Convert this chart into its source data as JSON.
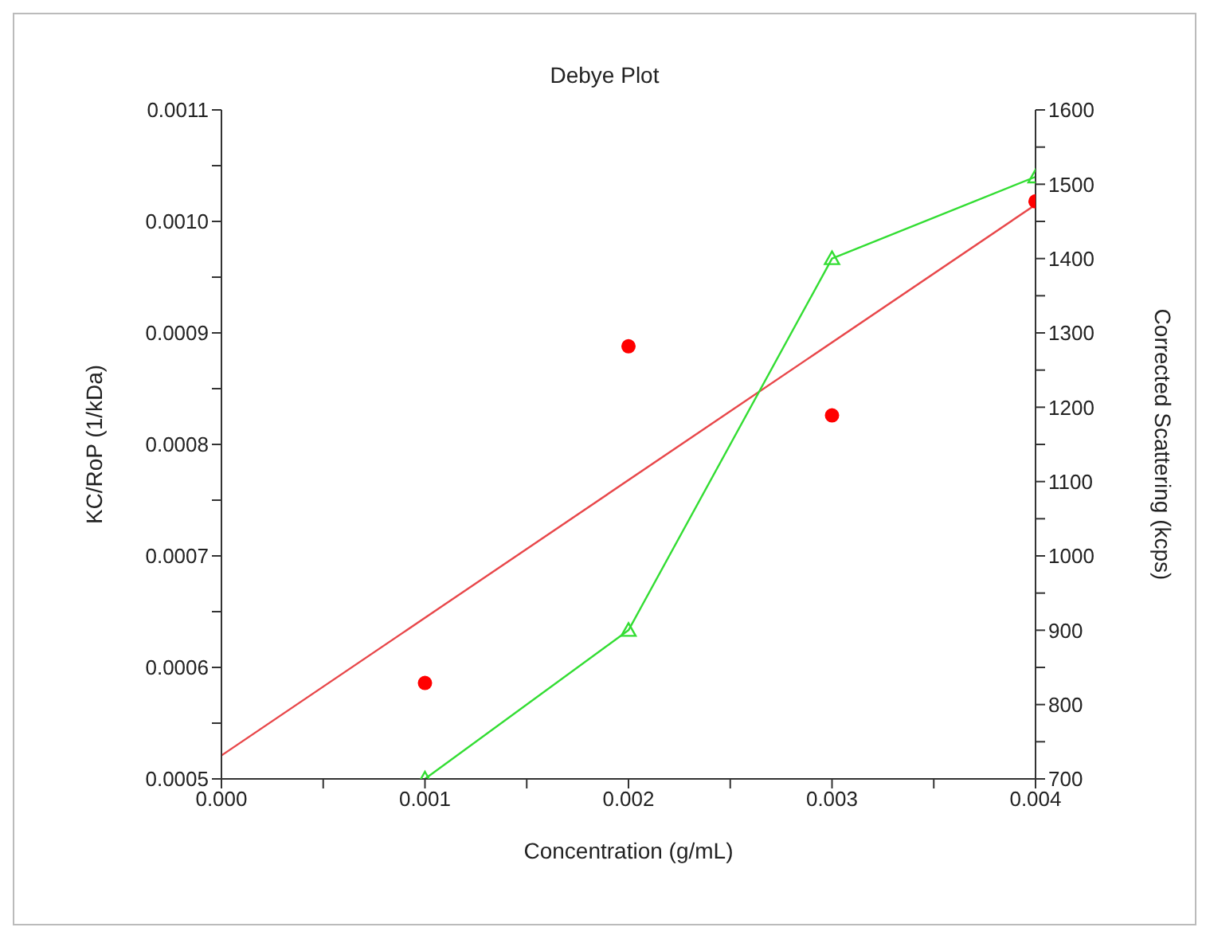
{
  "chart_data": {
    "type": "scatter",
    "title": "Debye Plot",
    "xlabel": "Concentration (g/mL)",
    "ylabel": "KC/RoP (1/kDa)",
    "y2label": "Corrected Scattering (kcps)",
    "xlim": [
      0,
      0.004
    ],
    "xticks": [
      {
        "value": 0,
        "label": "0.000"
      },
      {
        "value": 0.0005,
        "label": null
      },
      0.001,
      {
        "value": 0.0015,
        "label": null
      },
      0.002,
      {
        "value": 0.0025,
        "label": null
      },
      0.003,
      {
        "value": 0.0035,
        "label": null
      },
      0.004
    ],
    "ylim": [
      0.0005,
      0.0011
    ],
    "yticks": [
      0.0005,
      {
        "value": 0.00055,
        "label": null
      },
      0.0006,
      {
        "value": 0.00065,
        "label": null
      },
      0.0007,
      {
        "value": 0.00075,
        "label": null
      },
      0.0008,
      {
        "value": 0.00085,
        "label": null
      },
      0.0009,
      {
        "value": 0.00095,
        "label": null
      },
      {
        "value": 0.001,
        "label": "0.0010"
      },
      {
        "value": 0.00105,
        "label": null
      },
      0.0011
    ],
    "y2lim": [
      700,
      1600
    ],
    "y2ticks": [
      700,
      {
        "value": 750,
        "label": null
      },
      800,
      {
        "value": 850,
        "label": null
      },
      900,
      {
        "value": 950,
        "label": null
      },
      1000,
      {
        "value": 1050,
        "label": null
      },
      1100,
      {
        "value": 1150,
        "label": null
      },
      1200,
      {
        "value": 1250,
        "label": null
      },
      1300,
      {
        "value": 1350,
        "label": null
      },
      1400,
      {
        "value": 1450,
        "label": null
      },
      1500,
      {
        "value": 1550,
        "label": null
      },
      1600
    ],
    "grid": false,
    "legend": false,
    "series": [
      {
        "color": "#ff0000",
        "marker": "circle",
        "x": [
          0.001,
          0.002,
          0.003,
          0.004
        ],
        "values": [
          0.000586,
          0.000888,
          0.000826,
          0.001018
        ]
      },
      {
        "type": "line",
        "color": "#e8474a",
        "marker": "none",
        "x": [
          0,
          0.004
        ],
        "values": [
          0.000521,
          0.001015
        ]
      },
      {
        "type": "line",
        "color": "#33dd33",
        "marker": "triangle",
        "axis": "y2",
        "x": [
          0.001,
          0.002,
          0.003,
          0.004
        ],
        "values": [
          700,
          900,
          1400,
          1510
        ]
      }
    ]
  }
}
